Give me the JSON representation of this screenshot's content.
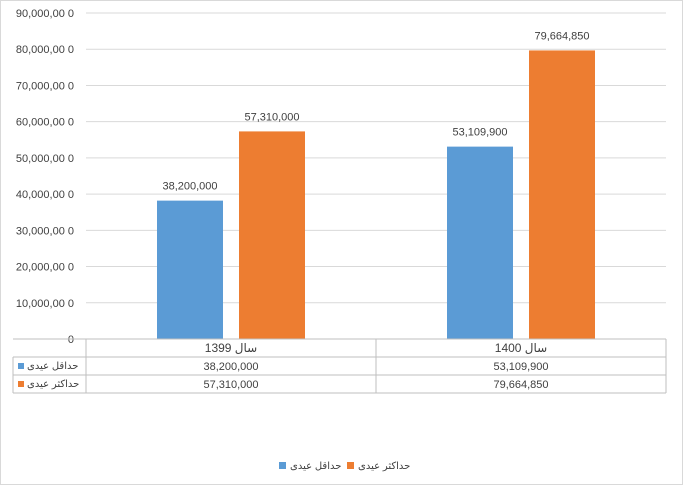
{
  "chart_data": {
    "type": "bar",
    "title": "",
    "xlabel": "",
    "ylabel": "",
    "ylim": [
      0,
      90000000
    ],
    "y_ticks": [
      "90,000,00 0",
      "80,000,00 0",
      "70,000,00 0",
      "60,000,00 0",
      "50,000,00 0",
      "40,000,00 0",
      "30,000,00 0",
      "20,000,00 0",
      "10,000,00 0",
      "0"
    ],
    "categories": [
      "سال 1399",
      "سال 1400"
    ],
    "series": [
      {
        "name": "حداقل عیدی",
        "color": "#5b9bd5",
        "values": [
          38200000,
          53109900
        ],
        "labels": [
          "38,200,000",
          "53,109,900"
        ]
      },
      {
        "name": "حداکثر عیدی",
        "color": "#ed7d31",
        "values": [
          57310000,
          79664850
        ],
        "labels": [
          "57,310,000",
          "79,664,850"
        ]
      }
    ],
    "grid": true,
    "legend": "bottom",
    "data_table": true
  }
}
